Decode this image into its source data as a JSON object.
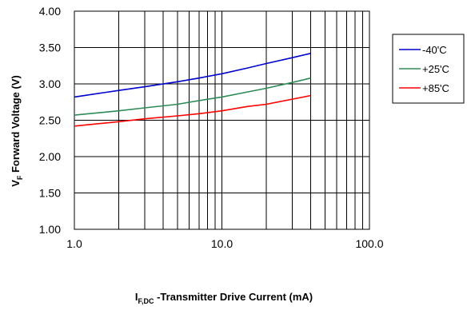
{
  "chart_data": {
    "type": "line",
    "title": "",
    "xlabel": {
      "main": "I",
      "sub": "F,DC",
      "rest": " -Transmitter Drive Current (mA)"
    },
    "ylabel": {
      "main": "V",
      "sub": "F",
      "rest": " Forward Voltage (V)"
    },
    "x_scale": "log",
    "xlim": [
      1,
      100
    ],
    "ylim": [
      1.0,
      4.0
    ],
    "x_ticks": [
      1,
      10,
      100
    ],
    "x_tick_labels": [
      "1.0",
      "10.0",
      "100.0"
    ],
    "y_ticks": [
      1.0,
      1.5,
      2.0,
      2.5,
      3.0,
      3.5,
      4.0
    ],
    "y_tick_labels": [
      "1.00",
      "1.50",
      "2.00",
      "2.50",
      "3.00",
      "3.50",
      "4.00"
    ],
    "grid": true,
    "legend_position": "right",
    "series": [
      {
        "name": "-40'C",
        "color": "#0000cc",
        "x": [
          1,
          2,
          3,
          5,
          7,
          10,
          15,
          20,
          30,
          40
        ],
        "y": [
          2.82,
          2.91,
          2.96,
          3.03,
          3.08,
          3.14,
          3.22,
          3.28,
          3.36,
          3.42
        ]
      },
      {
        "name": "+25'C",
        "color": "#2e8b57",
        "x": [
          1,
          2,
          3,
          5,
          7,
          10,
          15,
          20,
          30,
          40
        ],
        "y": [
          2.57,
          2.63,
          2.67,
          2.72,
          2.77,
          2.82,
          2.89,
          2.94,
          3.02,
          3.08
        ]
      },
      {
        "name": "+85'C",
        "color": "#ff0000",
        "x": [
          1,
          2,
          3,
          5,
          7,
          10,
          15,
          20,
          30,
          40
        ],
        "y": [
          2.42,
          2.48,
          2.52,
          2.56,
          2.59,
          2.63,
          2.69,
          2.72,
          2.79,
          2.84
        ]
      }
    ]
  }
}
